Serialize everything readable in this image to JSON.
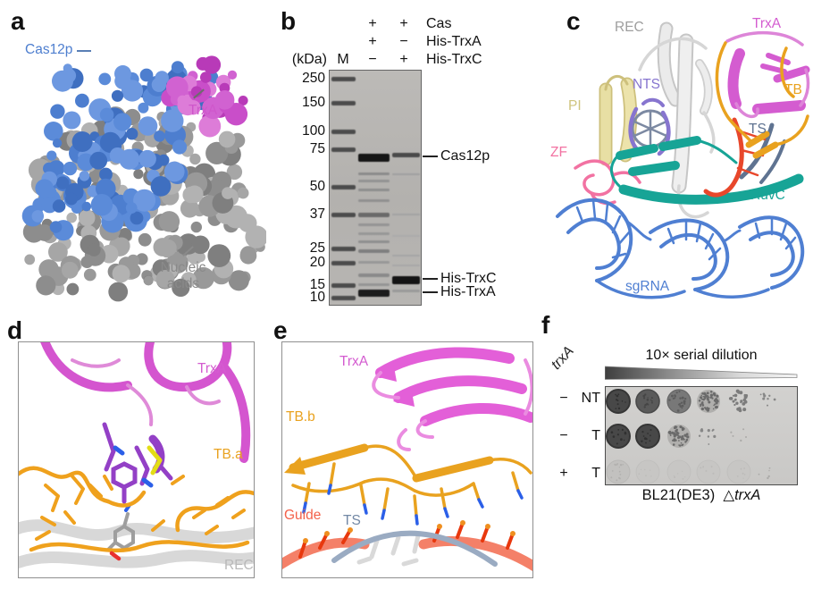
{
  "colors": {
    "cas12p_blue": "#4d7ecf",
    "trxa_magenta": "#cf57cb",
    "nucleic_gray": "#8a8a8a",
    "rec_gray": "#9e9e9e",
    "pi_khaki": "#cfc47e",
    "nts_purple": "#8775cf",
    "tb_orange": "#e9a21f",
    "ts_slate": "#5f7391",
    "zf_pink": "#f272a2",
    "ruvc_teal": "#17a496",
    "sgrna_blue": "#4f7fd2",
    "guide_salmon": "#f3614a",
    "rec_light": "#b9b9b9"
  },
  "panel_a": {
    "label": "a",
    "cas12p_label": "Cas12p",
    "trxa_label": "TrxA",
    "nucleic_line1": "Nucleic",
    "nucleic_line2": "acids"
  },
  "panel_b": {
    "label": "b",
    "kda_label": "(kDa)",
    "marker_lane_label": "M",
    "conditions": [
      {
        "name": "Cas",
        "lane1": "+",
        "lane2": "+"
      },
      {
        "name": "His-TrxA",
        "lane1": "+",
        "lane2": "−"
      },
      {
        "name": "His-TrxC",
        "lane1": "−",
        "lane2": "+"
      }
    ],
    "ladder_kda": [
      "250",
      "150",
      "100",
      "75",
      "50",
      "37",
      "25",
      "20",
      "15",
      "10"
    ],
    "band_labels": [
      {
        "text": "Cas12p"
      },
      {
        "text": "His-TrxC"
      },
      {
        "text": "His-TrxA"
      }
    ]
  },
  "panel_c": {
    "label": "c",
    "annotations": [
      {
        "text": "REC",
        "color": "#9e9e9e"
      },
      {
        "text": "TrxA",
        "color": "#d45cd0"
      },
      {
        "text": "PI",
        "color": "#cfc47e"
      },
      {
        "text": "NTS",
        "color": "#8775cf"
      },
      {
        "text": "TB",
        "color": "#e9a21f"
      },
      {
        "text": "TS",
        "color": "#5f7391"
      },
      {
        "text": "ZF",
        "color": "#f272a2"
      },
      {
        "text": "RuvC",
        "color": "#17a496"
      },
      {
        "text": "sgRNA",
        "color": "#4f7fd2"
      }
    ]
  },
  "panel_d": {
    "label": "d",
    "annotations": [
      {
        "text": "TrxA",
        "color": "#d45cd0"
      },
      {
        "text": "TB.a",
        "color": "#e9a21f"
      },
      {
        "text": "REC",
        "color": "#b9b9b9"
      }
    ]
  },
  "panel_e": {
    "label": "e",
    "annotations": [
      {
        "text": "TrxA",
        "color": "#d45cd0"
      },
      {
        "text": "TB.b",
        "color": "#e9a21f"
      },
      {
        "text": "Guide",
        "color": "#f3614a"
      },
      {
        "text": "TS",
        "color": "#7288a5"
      }
    ]
  },
  "panel_f": {
    "label": "f",
    "gene_label": "trxA",
    "dilution_title": "10× serial dilution",
    "rows": [
      {
        "trxA": "−",
        "target": "NT",
        "spots": [
          "dense",
          "dark",
          "medium",
          "mottled",
          "colonies",
          "few"
        ]
      },
      {
        "trxA": "−",
        "target": "T",
        "spots": [
          "dense",
          "dense",
          "mottled",
          "few",
          "trace",
          "none"
        ]
      },
      {
        "trxA": "+",
        "target": "T",
        "spots": [
          "faint",
          "ghost",
          "ghost",
          "ghost",
          "ghost",
          "trace"
        ]
      }
    ],
    "strain_label": "BL21(DE3)",
    "knockout_delta": "△",
    "knockout_gene": "trxA"
  }
}
